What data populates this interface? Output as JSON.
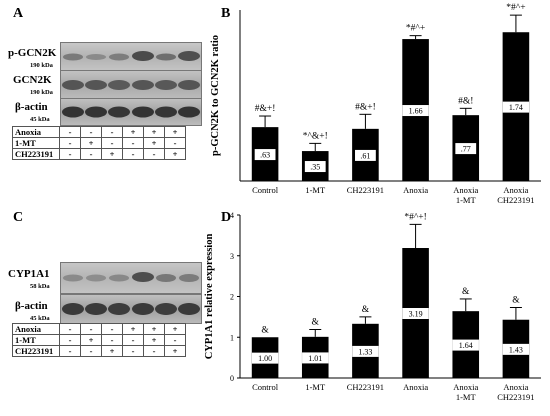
{
  "panels": {
    "a": "A",
    "b": "B",
    "c": "C",
    "d": "D"
  },
  "blot_a": {
    "bands": [
      {
        "name": "p-GCN2K",
        "kda": "190 kDa"
      },
      {
        "name": "GCN2K",
        "kda": "190 kDa"
      },
      {
        "name": "β-actin",
        "kda": "45 kDa"
      }
    ],
    "table_rows": [
      {
        "label": "Anoxia",
        "cells": [
          "-",
          "-",
          "-",
          "+",
          "+",
          "+"
        ]
      },
      {
        "label": "1-MT",
        "cells": [
          "-",
          "+",
          "-",
          "-",
          "+",
          "-"
        ]
      },
      {
        "label": "CH223191",
        "cells": [
          "-",
          "-",
          "+",
          "-",
          "-",
          "+"
        ]
      }
    ]
  },
  "blot_c": {
    "bands": [
      {
        "name": "CYP1A1",
        "kda": "58 kDa"
      },
      {
        "name": "β-actin",
        "kda": "45 kDa"
      }
    ],
    "table_rows": [
      {
        "label": "Anoxia",
        "cells": [
          "-",
          "-",
          "-",
          "+",
          "+",
          "+"
        ]
      },
      {
        "label": "1-MT",
        "cells": [
          "-",
          "+",
          "-",
          "-",
          "+",
          "-"
        ]
      },
      {
        "label": "CH223191",
        "cells": [
          "-",
          "-",
          "+",
          "-",
          "-",
          "+"
        ]
      }
    ]
  },
  "chart_data": [
    {
      "type": "bar",
      "panel": "B",
      "ylabel": "p-GCN2K to GCN2K ratio",
      "xlabel": "",
      "categories": [
        [
          "Control"
        ],
        [
          "1-MT"
        ],
        [
          "CH223191"
        ],
        [
          "Anoxia"
        ],
        [
          "Anoxia",
          "1-MT"
        ],
        [
          "Anoxia",
          "CH223191"
        ]
      ],
      "values": [
        0.63,
        0.35,
        0.61,
        1.66,
        0.77,
        1.74
      ],
      "value_labels": [
        ".63",
        ".35",
        ".61",
        "1.66",
        ".77",
        "1.74"
      ],
      "errors": [
        0.13,
        0.09,
        0.17,
        0.04,
        0.08,
        0.2
      ],
      "annotations": [
        "#&+!",
        "*^&+!",
        "#&+!",
        "*#^+",
        "#&!",
        "*#^+"
      ],
      "ylim": [
        0,
        2
      ],
      "yticks": [],
      "bar_color": "#000000",
      "grid": false
    },
    {
      "type": "bar",
      "panel": "D",
      "ylabel": "CYP1A1 relative expression",
      "xlabel": "",
      "categories": [
        [
          "Control"
        ],
        [
          "1-MT"
        ],
        [
          "CH223191"
        ],
        [
          "Anoxia"
        ],
        [
          "Anoxia",
          "1-MT"
        ],
        [
          "Anoxia",
          "CH223191"
        ]
      ],
      "values": [
        1.0,
        1.01,
        1.33,
        3.19,
        1.64,
        1.43
      ],
      "value_labels": [
        "1.00",
        "1.01",
        "1.33",
        "3.19",
        "1.64",
        "1.43"
      ],
      "errors": [
        0.0,
        0.18,
        0.17,
        0.58,
        0.3,
        0.3
      ],
      "annotations": [
        "&",
        "&",
        "&",
        "*#^+!",
        "&",
        "&"
      ],
      "ylim": [
        0,
        4
      ],
      "yticks": [
        "0",
        "1",
        "2",
        "3",
        "4"
      ],
      "bar_color": "#000000",
      "grid": false
    }
  ]
}
